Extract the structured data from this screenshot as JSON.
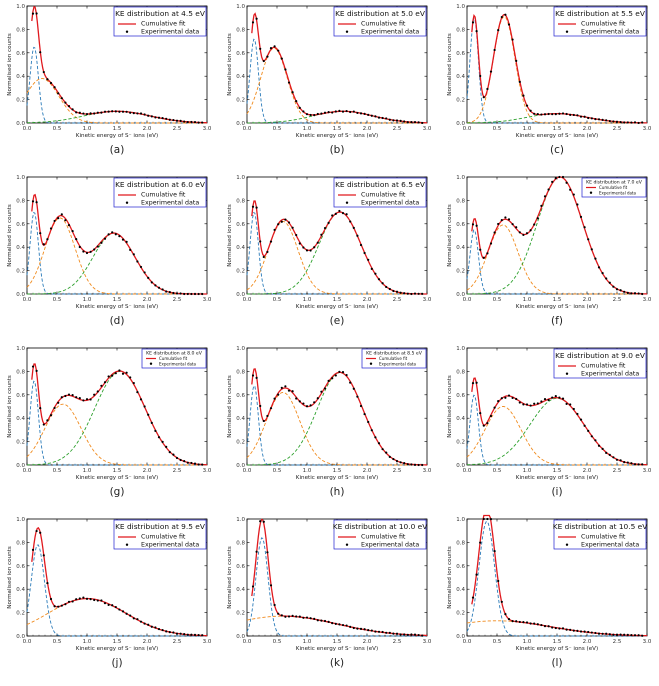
{
  "figure": {
    "x_axis_label": "Kinetic energy of S⁻ ions (eV)",
    "y_axis_label": "Normalised ion counts",
    "legend_fit": "Cumulative fit",
    "legend_data": "Experimental data",
    "colors": {
      "fit": "#e0191e",
      "peak1": "#2b7bb9",
      "peak2": "#f08a1c",
      "peak3": "#2ca02c",
      "data": "#000000",
      "legend_border": "#1f1fd0"
    }
  },
  "chart_data": [
    {
      "type": "line",
      "label": "(a)",
      "title": "KE distribution at 4.5 eV",
      "xlim": [
        0,
        3
      ],
      "ylim": [
        0,
        1.0
      ],
      "x_ticks": [
        "0.0",
        "0.5",
        "1.0",
        "1.5",
        "2.0",
        "2.5",
        "3.0"
      ],
      "y_ticks": [
        "0.0",
        "0.2",
        "0.4",
        "0.6",
        "0.8",
        "1.0"
      ],
      "components": [
        {
          "name": "peak 1",
          "amp": 0.65,
          "center": 0.12,
          "width": 0.07
        },
        {
          "name": "peak 2",
          "amp": 0.38,
          "center": 0.25,
          "width": 0.28
        },
        {
          "name": "peak 3",
          "amp": 0.1,
          "center": 1.5,
          "width": 0.55
        }
      ]
    },
    {
      "type": "line",
      "label": "(b)",
      "title": "KE distribution at 5.0 eV",
      "xlim": [
        0,
        3
      ],
      "ylim": [
        0,
        1.0
      ],
      "x_ticks": [
        "0.0",
        "0.5",
        "1.0",
        "1.5",
        "2.0",
        "2.5",
        "3.0"
      ],
      "y_ticks": [
        "0.0",
        "0.2",
        "0.4",
        "0.6",
        "0.8",
        "1.0"
      ],
      "components": [
        {
          "name": "peak 1",
          "amp": 0.72,
          "center": 0.12,
          "width": 0.07
        },
        {
          "name": "peak 2",
          "amp": 0.64,
          "center": 0.45,
          "width": 0.22
        },
        {
          "name": "peak 3",
          "amp": 0.1,
          "center": 1.6,
          "width": 0.5
        }
      ]
    },
    {
      "type": "line",
      "label": "(c)",
      "title": "KE distribution at 5.5 eV",
      "xlim": [
        0,
        3
      ],
      "ylim": [
        0,
        1.0
      ],
      "x_ticks": [
        "0.0",
        "0.5",
        "1.0",
        "1.5",
        "2.0",
        "2.5",
        "3.0"
      ],
      "y_ticks": [
        "0.0",
        "0.2",
        "0.4",
        "0.6",
        "0.8",
        "1.0"
      ],
      "components": [
        {
          "name": "peak 1",
          "amp": 0.9,
          "center": 0.12,
          "width": 0.07
        },
        {
          "name": "peak 2",
          "amp": 0.91,
          "center": 0.62,
          "width": 0.18
        },
        {
          "name": "peak 3",
          "amp": 0.08,
          "center": 1.5,
          "width": 0.5
        }
      ]
    },
    {
      "type": "line",
      "label": "(d)",
      "title": "KE distribution at 6.0 eV",
      "xlim": [
        0,
        3
      ],
      "ylim": [
        0,
        1.0
      ],
      "x_ticks": [
        "0.0",
        "0.5",
        "1.0",
        "1.5",
        "2.0",
        "2.5",
        "3.0"
      ],
      "y_ticks": [
        "0.0",
        "0.2",
        "0.4",
        "0.6",
        "0.8",
        "1.0"
      ],
      "components": [
        {
          "name": "peak 1",
          "amp": 0.7,
          "center": 0.12,
          "width": 0.07
        },
        {
          "name": "peak 2",
          "amp": 0.65,
          "center": 0.55,
          "width": 0.25
        },
        {
          "name": "peak 3",
          "amp": 0.52,
          "center": 1.45,
          "width": 0.35
        }
      ]
    },
    {
      "type": "line",
      "label": "(e)",
      "title": "KE distribution at 6.5 eV",
      "xlim": [
        0,
        3
      ],
      "ylim": [
        0,
        1.0
      ],
      "x_ticks": [
        "0.0",
        "0.5",
        "1.0",
        "1.5",
        "2.0",
        "2.5",
        "3.0"
      ],
      "y_ticks": [
        "0.0",
        "0.2",
        "0.4",
        "0.6",
        "0.8",
        "1.0"
      ],
      "components": [
        {
          "name": "peak 1",
          "amp": 0.7,
          "center": 0.12,
          "width": 0.07
        },
        {
          "name": "peak 2",
          "amp": 0.62,
          "center": 0.6,
          "width": 0.25
        },
        {
          "name": "peak 3",
          "amp": 0.7,
          "center": 1.55,
          "width": 0.35
        }
      ]
    },
    {
      "type": "line",
      "label": "(f)",
      "title": "KE distribution at 7.0 eV",
      "xlim": [
        0,
        3
      ],
      "ylim": [
        0,
        1.0
      ],
      "x_ticks": [
        "0.0",
        "0.5",
        "1.0",
        "1.5",
        "2.0",
        "2.5",
        "3.0"
      ],
      "y_ticks": [
        "0.0",
        "0.2",
        "0.4",
        "0.6",
        "0.8",
        "1.0"
      ],
      "components": [
        {
          "name": "peak 1",
          "amp": 0.55,
          "center": 0.12,
          "width": 0.07
        },
        {
          "name": "peak 2",
          "amp": 0.59,
          "center": 0.6,
          "width": 0.25
        },
        {
          "name": "peak 3",
          "amp": 1.0,
          "center": 1.55,
          "width": 0.38
        }
      ]
    },
    {
      "type": "line",
      "label": "(g)",
      "title": "KE distribution at 8.0 eV",
      "xlim": [
        0,
        3
      ],
      "ylim": [
        0,
        1.0
      ],
      "x_ticks": [
        "0.0",
        "0.5",
        "1.0",
        "1.5",
        "2.0",
        "2.5",
        "3.0"
      ],
      "y_ticks": [
        "0.0",
        "0.2",
        "0.4",
        "0.6",
        "0.8",
        "1.0"
      ],
      "components": [
        {
          "name": "peak 1",
          "amp": 0.72,
          "center": 0.12,
          "width": 0.07
        },
        {
          "name": "peak 2",
          "amp": 0.52,
          "center": 0.6,
          "width": 0.3
        },
        {
          "name": "peak 3",
          "amp": 0.8,
          "center": 1.55,
          "width": 0.42
        }
      ]
    },
    {
      "type": "line",
      "label": "(h)",
      "title": "KE distribution at 8.5 eV",
      "xlim": [
        0,
        3
      ],
      "ylim": [
        0,
        1.0
      ],
      "x_ticks": [
        "0.0",
        "0.5",
        "1.0",
        "1.5",
        "2.0",
        "2.5",
        "3.0"
      ],
      "y_ticks": [
        "0.0",
        "0.2",
        "0.4",
        "0.6",
        "0.8",
        "1.0"
      ],
      "components": [
        {
          "name": "peak 1",
          "amp": 0.68,
          "center": 0.12,
          "width": 0.07
        },
        {
          "name": "peak 2",
          "amp": 0.62,
          "center": 0.6,
          "width": 0.28
        },
        {
          "name": "peak 3",
          "amp": 0.79,
          "center": 1.55,
          "width": 0.38
        }
      ]
    },
    {
      "type": "line",
      "label": "(i)",
      "title": "KE distribution at 9.0 eV",
      "xlim": [
        0,
        3
      ],
      "ylim": [
        0,
        1.0
      ],
      "x_ticks": [
        "0.0",
        "0.5",
        "1.0",
        "1.5",
        "2.0",
        "2.5",
        "3.0"
      ],
      "y_ticks": [
        "0.0",
        "0.2",
        "0.4",
        "0.6",
        "0.8",
        "1.0"
      ],
      "components": [
        {
          "name": "peak 1",
          "amp": 0.6,
          "center": 0.12,
          "width": 0.07
        },
        {
          "name": "peak 2",
          "amp": 0.5,
          "center": 0.6,
          "width": 0.3
        },
        {
          "name": "peak 3",
          "amp": 0.57,
          "center": 1.5,
          "width": 0.45
        }
      ]
    },
    {
      "type": "line",
      "label": "(j)",
      "title": "KE distribution at 9.5 eV",
      "xlim": [
        0,
        3
      ],
      "ylim": [
        0,
        1.0
      ],
      "x_ticks": [
        "0.0",
        "0.5",
        "1.0",
        "1.5",
        "2.0",
        "2.5",
        "3.0"
      ],
      "y_ticks": [
        "0.0",
        "0.2",
        "0.4",
        "0.6",
        "0.8",
        "1.0"
      ],
      "components": [
        {
          "name": "peak 1",
          "amp": 0.78,
          "center": 0.18,
          "width": 0.11
        },
        {
          "name": "peak 2",
          "amp": 0.32,
          "center": 1.0,
          "width": 0.65
        }
      ]
    },
    {
      "type": "line",
      "label": "(k)",
      "title": "KE distribution at 10.0 eV",
      "xlim": [
        0,
        3
      ],
      "ylim": [
        0,
        1.0
      ],
      "x_ticks": [
        "0.0",
        "0.5",
        "1.0",
        "1.5",
        "2.0",
        "2.5",
        "3.0"
      ],
      "y_ticks": [
        "0.0",
        "0.2",
        "0.4",
        "0.6",
        "0.8",
        "1.0"
      ],
      "components": [
        {
          "name": "peak 1",
          "amp": 0.84,
          "center": 0.25,
          "width": 0.1
        },
        {
          "name": "peak 2",
          "amp": 0.17,
          "center": 0.6,
          "width": 0.9
        }
      ]
    },
    {
      "type": "line",
      "label": "(l)",
      "title": "KE distribution at 10.5 eV",
      "xlim": [
        0,
        3
      ],
      "ylim": [
        0,
        1.0
      ],
      "x_ticks": [
        "0.0",
        "0.5",
        "1.0",
        "1.5",
        "2.0",
        "2.5",
        "3.0"
      ],
      "y_ticks": [
        "0.0",
        "0.2",
        "0.4",
        "0.6",
        "0.8",
        "1.0"
      ],
      "components": [
        {
          "name": "peak 1",
          "amp": 0.98,
          "center": 0.33,
          "width": 0.13
        },
        {
          "name": "peak 2",
          "amp": 0.13,
          "center": 0.5,
          "width": 0.9
        }
      ]
    }
  ]
}
